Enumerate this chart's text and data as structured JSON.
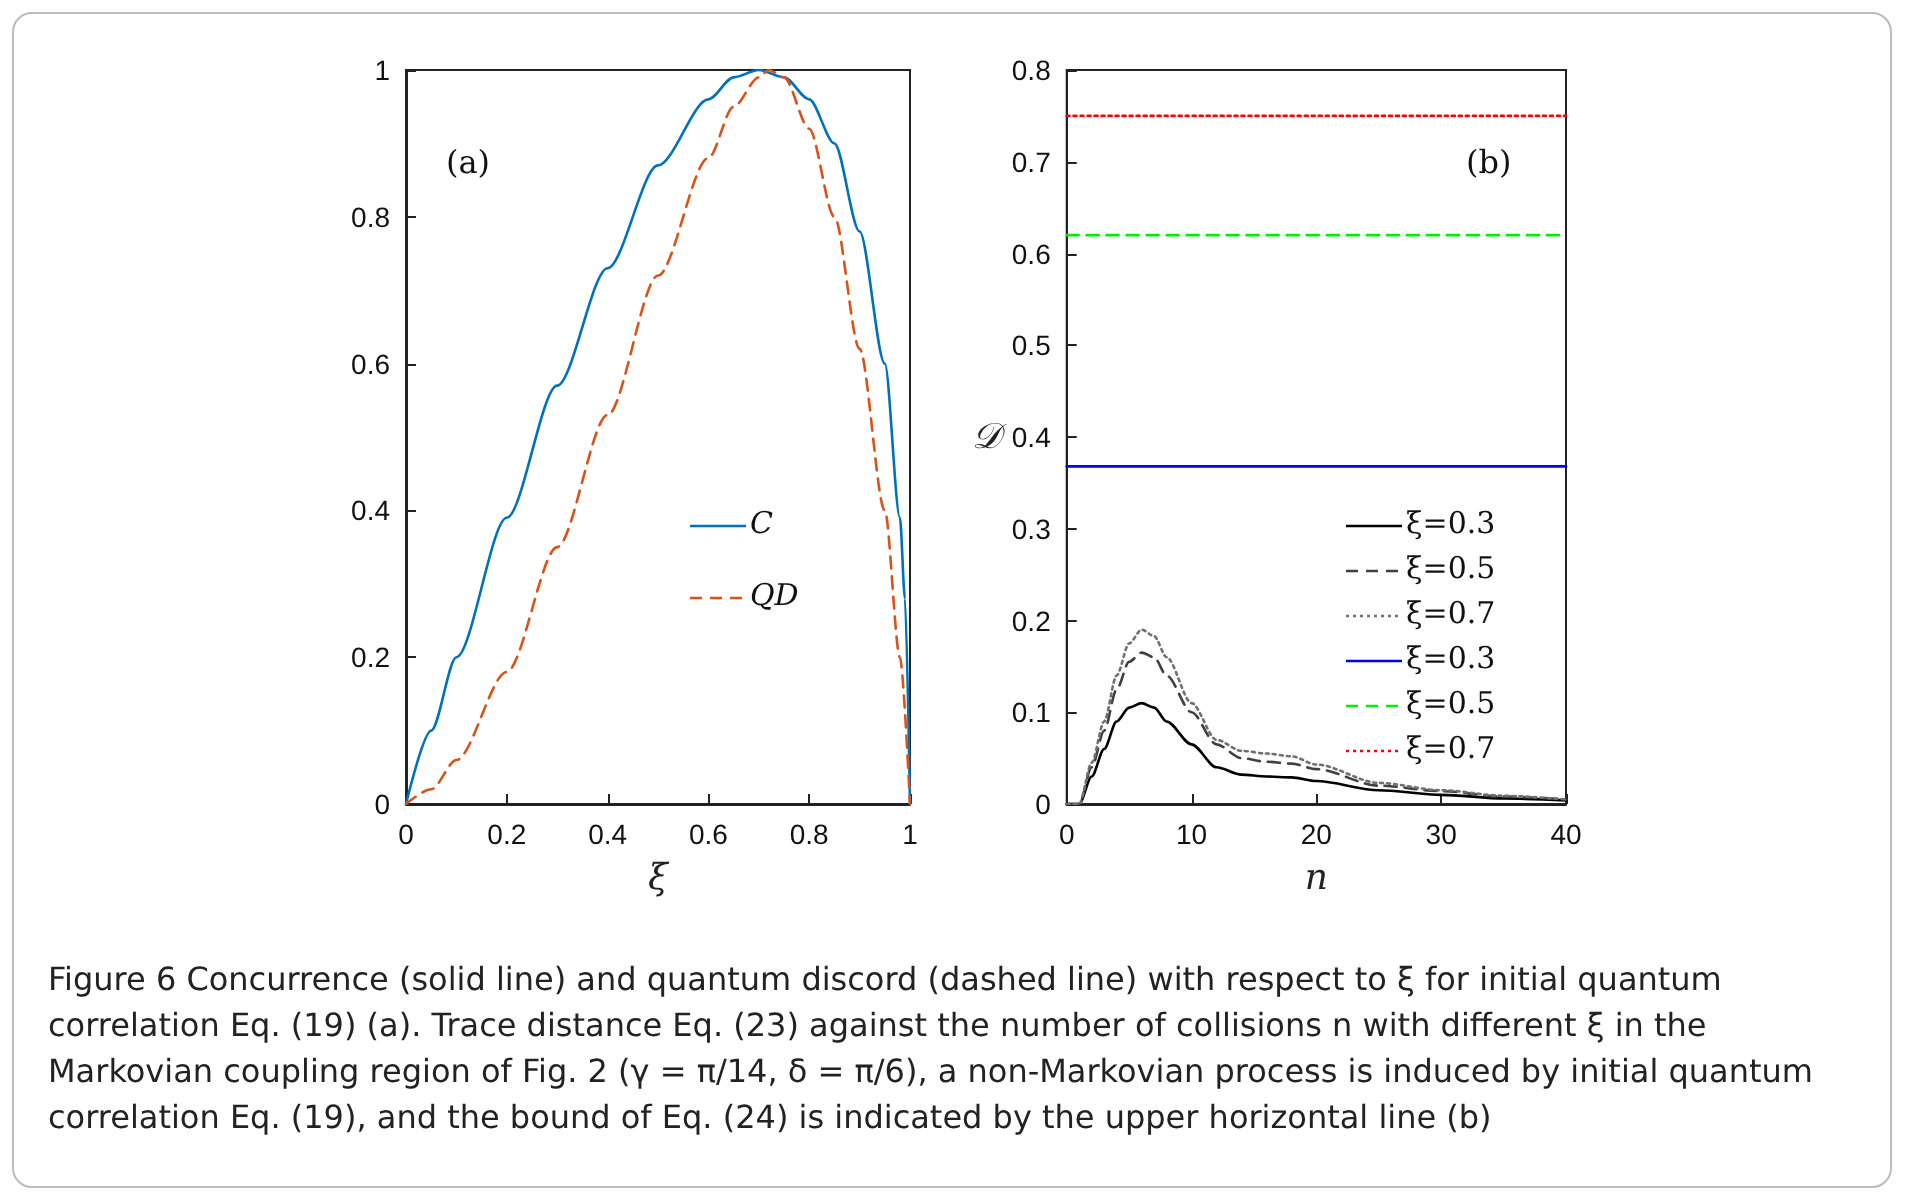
{
  "chart_data": [
    {
      "type": "line",
      "xlabel": "ξ",
      "xlim": [
        0,
        1
      ],
      "xticks": [
        0,
        0.2,
        0.4,
        0.6,
        0.8,
        1
      ],
      "ylim": [
        0,
        1
      ],
      "yticks": [
        0,
        0.2,
        0.4,
        0.6,
        0.8,
        1
      ],
      "grid": false,
      "legend": "bottom right",
      "marker": "none",
      "annotations": [
        "(a)",
        "Figure 6  Concurrence (solid line) and quantum discord (dashed line) with respect to ξ for initial quantum correlation Eq. (19) (a). Trace distance Eq. (23) against the number of collisions n with different ξ in the Markovian coupling region of Fig. 2 (γ = π/14, δ = π/6), a non-Markovian process is induced by initial quantum correlation Eq. (19), and the bound of Eq. (24) is indicated by the upper horizontal line (b)"
      ],
      "series": [
        {
          "name": "C",
          "color": "#0072bd",
          "line_style": "solid",
          "x": [
            0,
            0.05,
            0.1,
            0.2,
            0.3,
            0.4,
            0.5,
            0.6,
            0.65,
            0.7,
            0.75,
            0.8,
            0.85,
            0.9,
            0.95,
            0.98,
            0.99,
            1
          ],
          "values": [
            0,
            0.1,
            0.2,
            0.39,
            0.57,
            0.73,
            0.87,
            0.96,
            0.99,
            1,
            0.99,
            0.96,
            0.9,
            0.78,
            0.6,
            0.39,
            0.28,
            0
          ]
        },
        {
          "name": "QD",
          "color": "#d95319",
          "line_style": "dashed",
          "x": [
            0,
            0.05,
            0.1,
            0.2,
            0.3,
            0.4,
            0.5,
            0.6,
            0.65,
            0.7,
            0.72,
            0.75,
            0.8,
            0.85,
            0.9,
            0.95,
            0.98,
            1
          ],
          "values": [
            0,
            0.02,
            0.06,
            0.18,
            0.35,
            0.53,
            0.72,
            0.88,
            0.95,
            0.99,
            1,
            0.99,
            0.92,
            0.8,
            0.62,
            0.4,
            0.2,
            0
          ]
        }
      ]
    },
    {
      "type": "line",
      "xlabel": "n",
      "ylabel": "𝒟",
      "xlim": [
        0,
        40
      ],
      "xticks": [
        0,
        10,
        20,
        30,
        40
      ],
      "ylim": [
        0,
        0.8
      ],
      "yticks": [
        0,
        0.1,
        0.2,
        0.3,
        0.4,
        0.5,
        0.6,
        0.7,
        0.8
      ],
      "grid": false,
      "legend": "right",
      "marker": "none",
      "annotations": [
        "(b)"
      ],
      "series": [
        {
          "name": "ξ=0.3",
          "color": "#000000",
          "line_style": "solid",
          "x": [
            0,
            1,
            2,
            3,
            4,
            5,
            6,
            7,
            8,
            10,
            12,
            14,
            16,
            18,
            20,
            25,
            30,
            35,
            40
          ],
          "values": [
            0,
            0,
            0.03,
            0.06,
            0.09,
            0.105,
            0.11,
            0.105,
            0.09,
            0.065,
            0.04,
            0.032,
            0.03,
            0.029,
            0.025,
            0.015,
            0.01,
            0.006,
            0.004
          ]
        },
        {
          "name": "ξ=0.5",
          "color": "#404040",
          "line_style": "dashed",
          "x": [
            0,
            1,
            2,
            3,
            4,
            5,
            6,
            7,
            8,
            10,
            12,
            14,
            16,
            18,
            20,
            25,
            30,
            35,
            40
          ],
          "values": [
            0,
            0,
            0.04,
            0.08,
            0.125,
            0.155,
            0.165,
            0.16,
            0.14,
            0.1,
            0.065,
            0.05,
            0.046,
            0.044,
            0.038,
            0.02,
            0.014,
            0.008,
            0.005
          ]
        },
        {
          "name": "ξ=0.7",
          "color": "#707070",
          "line_style": "dotted",
          "x": [
            0,
            1,
            2,
            3,
            4,
            5,
            6,
            7,
            8,
            10,
            12,
            14,
            16,
            18,
            20,
            25,
            30,
            35,
            40
          ],
          "values": [
            0,
            0,
            0.045,
            0.09,
            0.14,
            0.175,
            0.19,
            0.183,
            0.16,
            0.11,
            0.07,
            0.058,
            0.055,
            0.052,
            0.043,
            0.023,
            0.015,
            0.009,
            0.005
          ]
        },
        {
          "name": "ξ=0.3",
          "color": "#0000ff",
          "line_style": "solid",
          "x": [
            0,
            40
          ],
          "values": [
            0.368,
            0.368
          ]
        },
        {
          "name": "ξ=0.5",
          "color": "#00ee00",
          "line_style": "dashed",
          "x": [
            0,
            40
          ],
          "values": [
            0.62,
            0.62
          ]
        },
        {
          "name": "ξ=0.7",
          "color": "#ff0000",
          "line_style": "dotted",
          "x": [
            0,
            40
          ],
          "values": [
            0.75,
            0.75
          ]
        }
      ]
    }
  ]
}
